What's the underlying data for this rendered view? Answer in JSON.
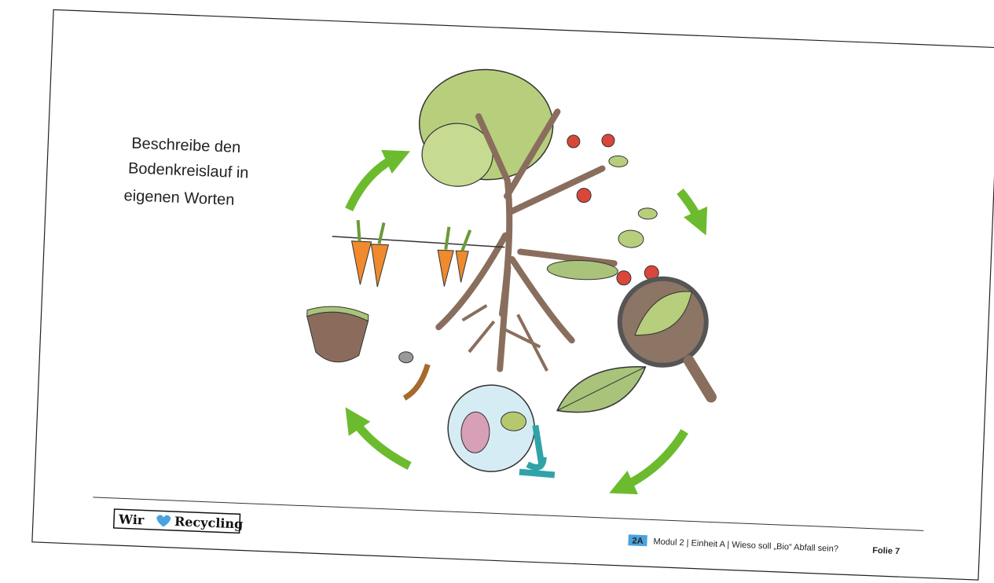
{
  "slide": {
    "prompt": [
      "Beschreibe den",
      "Bodenkreislauf in",
      "eigenen Worten"
    ],
    "logo": {
      "left": "Wir",
      "right": "Recycling"
    },
    "footer": {
      "badge": "2A",
      "module": "Modul 2 | Einheit A | Wieso soll „Bio“ Abfall sein?",
      "slide_number": "Folie 7"
    }
  }
}
